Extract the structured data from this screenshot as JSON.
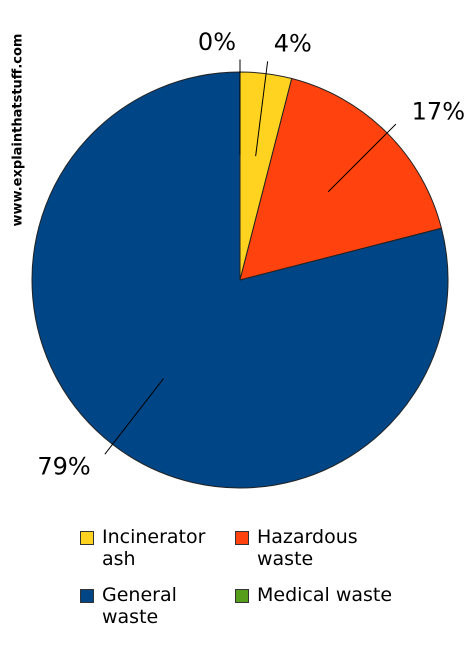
{
  "chart_data": {
    "type": "pie",
    "watermark": "www.explainthatstuff.com",
    "categories": [
      "Incinerator ash",
      "Hazardous waste",
      "General waste",
      "Medical waste"
    ],
    "values": [
      4,
      17,
      79,
      0
    ],
    "value_labels": [
      "4%",
      "17%",
      "79%",
      "0%"
    ],
    "colors": [
      "#ffd320",
      "#ff420e",
      "#004586",
      "#579d1c"
    ]
  }
}
